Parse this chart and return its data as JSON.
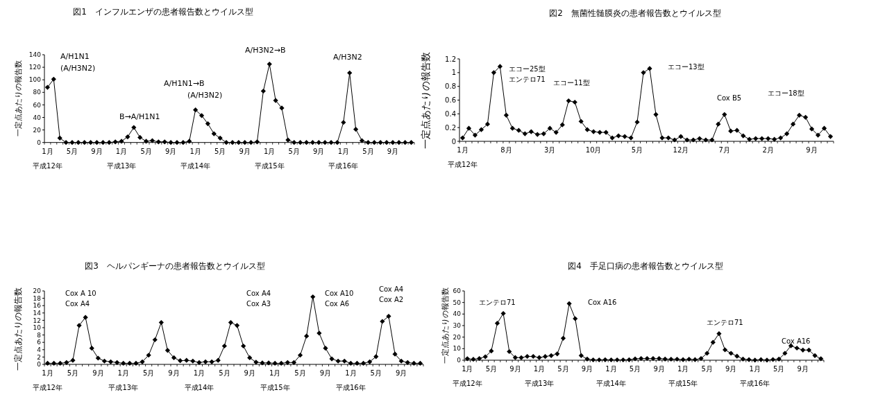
{
  "chart_data": [
    {
      "type": "line",
      "title": "図1　インフルエンザの患者報告数とウイルス型",
      "ylabel": "一定点あたりの報告数",
      "categories": [
        "1月",
        null,
        null,
        null,
        "5月",
        null,
        null,
        null,
        "9月",
        null,
        null,
        null,
        "1月",
        null,
        null,
        null,
        "5月",
        null,
        null,
        null,
        "9月",
        null,
        null,
        null,
        "1月",
        null,
        null,
        null,
        "5月",
        null,
        null,
        null,
        "9月",
        null,
        null,
        null,
        "1月",
        null,
        null,
        null,
        "5月",
        null,
        null,
        null,
        "9月",
        null,
        null,
        null,
        "1月",
        null,
        null,
        null,
        "5月",
        null,
        null,
        null,
        "9月",
        null,
        null,
        null
      ],
      "series": [
        {
          "color": "#000000",
          "values": [
            88,
            101,
            7,
            0,
            0,
            0,
            0,
            0,
            0,
            0,
            0,
            1,
            2,
            9,
            24,
            8,
            2,
            3,
            1,
            1,
            0,
            0,
            0,
            2,
            52,
            43,
            30,
            14,
            7,
            0,
            0,
            0,
            0,
            0,
            1,
            82,
            125,
            67,
            55,
            4,
            0,
            0,
            0,
            0,
            0,
            0,
            0,
            0,
            32,
            111,
            21,
            3,
            0,
            0,
            0,
            0,
            0,
            0,
            0,
            0
          ]
        }
      ],
      "ylim": [
        0,
        140
      ],
      "yticks": [
        0,
        20,
        40,
        60,
        80,
        100,
        120,
        140
      ],
      "marker": "diamond",
      "grid": false,
      "annotations": [
        "A/H1N1",
        "(A/H3N2)",
        "B→A/H1N1",
        "A/H1N1→B",
        "(A/H3N2)",
        "A/H3N2→B",
        "A/H3N2",
        "平成12年",
        "平成13年",
        "平成14年",
        "平成15年",
        "平成16年"
      ]
    },
    {
      "type": "line",
      "title": "図2　無菌性髄膜炎の患者報告数とウイルス型",
      "ylabel": "一定点あたりの報告数",
      "categories": [
        "1月",
        null,
        null,
        null,
        null,
        null,
        null,
        "8月",
        null,
        null,
        null,
        null,
        null,
        null,
        "3月",
        null,
        null,
        null,
        null,
        null,
        null,
        "10月",
        null,
        null,
        null,
        null,
        null,
        null,
        "5月",
        null,
        null,
        null,
        null,
        null,
        null,
        "12月",
        null,
        null,
        null,
        null,
        null,
        null,
        "7月",
        null,
        null,
        null,
        null,
        null,
        null,
        "2月",
        null,
        null,
        null,
        null,
        null,
        null,
        "9月",
        null,
        null,
        null
      ],
      "series": [
        {
          "color": "#000000",
          "values": [
            0.05,
            0.19,
            0.09,
            0.17,
            0.25,
            1.0,
            1.09,
            0.38,
            0.19,
            0.16,
            0.11,
            0.14,
            0.1,
            0.11,
            0.19,
            0.13,
            0.24,
            0.59,
            0.57,
            0.29,
            0.17,
            0.14,
            0.13,
            0.13,
            0.05,
            0.08,
            0.07,
            0.05,
            0.28,
            1.0,
            1.06,
            0.39,
            0.05,
            0.05,
            0.02,
            0.07,
            0.02,
            0.02,
            0.04,
            0.02,
            0.02,
            0.25,
            0.39,
            0.15,
            0.16,
            0.08,
            0.03,
            0.04,
            0.04,
            0.04,
            0.03,
            0.05,
            0.11,
            0.25,
            0.38,
            0.35,
            0.18,
            0.09,
            0.19,
            0.07
          ]
        }
      ],
      "ylim": [
        0,
        1.2
      ],
      "yticks": [
        0,
        0.2,
        0.4,
        0.6,
        0.8,
        1,
        1.2
      ],
      "marker": "diamond",
      "grid": false,
      "annotations": [
        "エコー25型",
        "エンテロ71",
        "エコー11型",
        "エコー13型",
        "Cox B5",
        "エコー18型",
        "平成12年"
      ]
    },
    {
      "type": "line",
      "title": "図3　ヘルパンギーナの患者報告数とウイルス型",
      "ylabel": "一定点あたりの報告数",
      "categories": [
        "1月",
        null,
        null,
        null,
        "5月",
        null,
        null,
        null,
        "9月",
        null,
        null,
        null,
        "1月",
        null,
        null,
        null,
        "5月",
        null,
        null,
        null,
        "9月",
        null,
        null,
        null,
        "1月",
        null,
        null,
        null,
        "5月",
        null,
        null,
        null,
        "9月",
        null,
        null,
        null,
        "1月",
        null,
        null,
        null,
        "5月",
        null,
        null,
        null,
        "9月",
        null,
        null,
        null,
        "1月",
        null,
        null,
        null,
        "5月",
        null,
        null,
        null,
        "9月",
        null,
        null,
        null
      ],
      "series": [
        {
          "color": "#000000",
          "values": [
            0.3,
            0.3,
            0.3,
            0.5,
            1.1,
            10.6,
            12.8,
            4.4,
            1.7,
            0.9,
            0.7,
            0.5,
            0.3,
            0.3,
            0.3,
            0.7,
            2.5,
            6.7,
            11.4,
            3.8,
            1.8,
            1.0,
            1.1,
            0.9,
            0.5,
            0.7,
            0.7,
            1.1,
            5,
            11.4,
            10.6,
            5,
            1.8,
            0.6,
            0.4,
            0.4,
            0.3,
            0.3,
            0.5,
            0.5,
            2.5,
            7.7,
            18.4,
            8.5,
            4.4,
            1.5,
            0.9,
            0.9,
            0.3,
            0.3,
            0.3,
            0.7,
            2.1,
            11.7,
            13.1,
            2.8,
            0.9,
            0.5,
            0.3,
            0.3
          ]
        }
      ],
      "ylim": [
        0,
        20
      ],
      "yticks": [
        0,
        2,
        4,
        6,
        8,
        10,
        12,
        14,
        16,
        18,
        20
      ],
      "marker": "diamond",
      "grid": false,
      "annotations": [
        "Cox A 10",
        "Cox A4",
        "Cox A4",
        "Cox A3",
        "Cox A10",
        "Cox A6",
        "Cox A4",
        "Cox A2",
        "平成12年",
        "平成13年",
        "平成14年",
        "平成15年",
        "平成16年"
      ]
    },
    {
      "type": "line",
      "title": "図4　手足口病の患者報告数とウイルス型",
      "ylabel": "一定点あたりの報告数",
      "categories": [
        "1月",
        null,
        null,
        null,
        "5月",
        null,
        null,
        null,
        "9月",
        null,
        null,
        null,
        "1月",
        null,
        null,
        null,
        "5月",
        null,
        null,
        null,
        "9月",
        null,
        null,
        null,
        "1月",
        null,
        null,
        null,
        "5月",
        null,
        null,
        null,
        "9月",
        null,
        null,
        null,
        "1月",
        null,
        null,
        null,
        "5月",
        null,
        null,
        null,
        "9月",
        null,
        null,
        null,
        "1月",
        null,
        null,
        null,
        "5月",
        null,
        null,
        null,
        "9月",
        null,
        null,
        null
      ],
      "series": [
        {
          "color": "#000000",
          "values": [
            1.3,
            0.8,
            1.5,
            3,
            8,
            32,
            40.5,
            7.5,
            2.3,
            2.2,
            3.3,
            3.3,
            2.3,
            3.2,
            4,
            5.5,
            19,
            49,
            36,
            4,
            1,
            0.3,
            0.3,
            0.4,
            0.3,
            0.3,
            0.3,
            0.4,
            1.2,
            1.5,
            1.5,
            1.5,
            1.5,
            1,
            0.9,
            0.9,
            0.5,
            0.9,
            0.5,
            1.5,
            6,
            15.5,
            23,
            9,
            6,
            3.5,
            1,
            0.5,
            0.1,
            0.5,
            0.1,
            0.6,
            1,
            6,
            12.5,
            10.5,
            8.8,
            8.8,
            4,
            1.3
          ]
        }
      ],
      "ylim": [
        0,
        60
      ],
      "yticks": [
        0,
        10,
        20,
        30,
        40,
        50,
        60
      ],
      "marker": "diamond",
      "grid": false,
      "annotations": [
        "エンテロ71",
        "Cox A16",
        "エンテロ71",
        "Cox A16",
        "平成12年",
        "平成13年",
        "平成14年",
        "平成15年",
        "平成16年"
      ]
    }
  ]
}
